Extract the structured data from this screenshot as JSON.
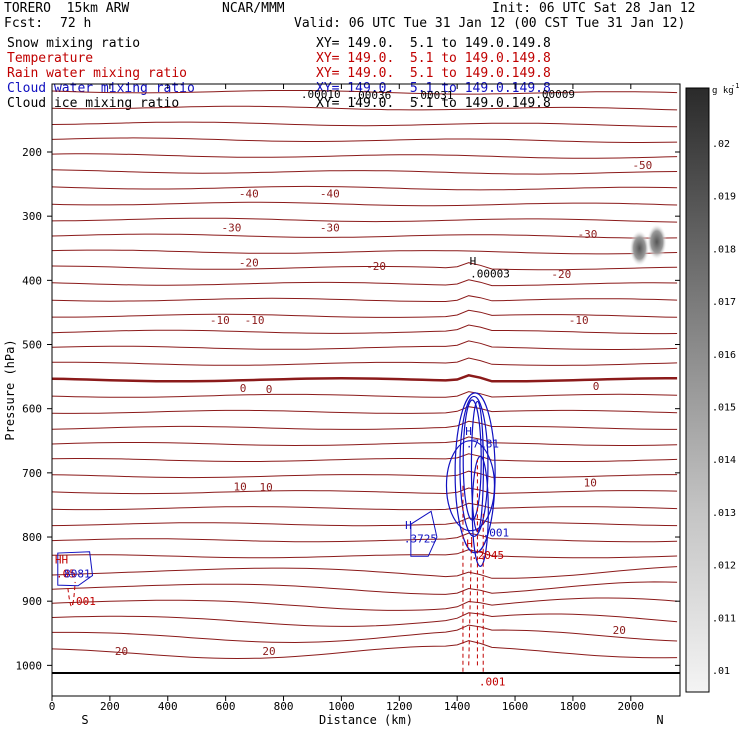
{
  "header": {
    "model": "TORERO  15km ARW",
    "org": "NCAR/MMM",
    "init": "Init: 06 UTC Sat 28 Jan 12",
    "fcst_label": "Fcst:",
    "fcst_value": "72 h",
    "valid": "Valid: 06 UTC Tue 31 Jan 12 (00 CST Tue 31 Jan 12)"
  },
  "legend": [
    {
      "name": "Snow mixing ratio",
      "xy": "XY= 149.0.  5.1 to 149.0.149.8",
      "color": "#000000"
    },
    {
      "name": "Temperature",
      "xy": "XY= 149.0.  5.1 to 149.0.149.8",
      "color": "#c00000"
    },
    {
      "name": "Rain water mixing ratio",
      "xy": "XY= 149.0.  5.1 to 149.0.149.8",
      "color": "#c00000"
    },
    {
      "name": "Cloud water mixing ratio",
      "xy": "XY= 149.0.  5.1 to 149.0.149.8",
      "color": "#1010c0"
    },
    {
      "name": "Cloud ice mixing ratio",
      "xy": "XY= 149.0.  5.1 to 149.0.149.8",
      "color": "#000000"
    }
  ],
  "chart_data": {
    "type": "contour cross-section",
    "xlabel": "Distance (km)",
    "ylabel": "Pressure (hPa)",
    "xlim": [
      0,
      2170
    ],
    "ylim": [
      1050,
      100
    ],
    "x_ticks": [
      0,
      200,
      400,
      600,
      800,
      1000,
      1200,
      1400,
      1600,
      1800,
      2000
    ],
    "y_ticks": [
      200,
      300,
      400,
      500,
      600,
      700,
      800,
      900,
      1000
    ],
    "end_labels": {
      "left": "S",
      "right": "N"
    },
    "colorbar": {
      "unit": "g kg",
      "unit_exp": "-1",
      "ticks": [
        ".02",
        ".019",
        ".018",
        ".017",
        ".016",
        ".015",
        ".014",
        ".013",
        ".012",
        ".011",
        ".01"
      ]
    },
    "temperature_contours": {
      "labeled": [
        -50,
        -40,
        -30,
        -20,
        -10,
        0,
        10,
        20
      ],
      "labels": [
        {
          "text": "-50",
          "x": 2040,
          "p": 220
        },
        {
          "text": "-40",
          "x": 680,
          "p": 265
        },
        {
          "text": "-40",
          "x": 960,
          "p": 265
        },
        {
          "text": "-30",
          "x": 620,
          "p": 318
        },
        {
          "text": "-30",
          "x": 960,
          "p": 318
        },
        {
          "text": "-30",
          "x": 1850,
          "p": 328
        },
        {
          "text": "-20",
          "x": 680,
          "p": 372
        },
        {
          "text": "-20",
          "x": 1120,
          "p": 378
        },
        {
          "text": "-20",
          "x": 1760,
          "p": 390
        },
        {
          "text": "-10",
          "x": 580,
          "p": 462
        },
        {
          "text": "-10",
          "x": 700,
          "p": 462
        },
        {
          "text": "-10",
          "x": 1820,
          "p": 462
        },
        {
          "text": "0",
          "x": 660,
          "p": 568
        },
        {
          "text": "0",
          "x": 750,
          "p": 569
        },
        {
          "text": "0",
          "x": 1880,
          "p": 565
        },
        {
          "text": "10",
          "x": 650,
          "p": 721
        },
        {
          "text": "10",
          "x": 740,
          "p": 722
        },
        {
          "text": "10",
          "x": 1860,
          "p": 715
        },
        {
          "text": "20",
          "x": 240,
          "p": 978
        },
        {
          "text": "20",
          "x": 750,
          "p": 978
        },
        {
          "text": "20",
          "x": 1960,
          "p": 945
        }
      ]
    },
    "annotations": [
      {
        "text": ".00010",
        "x": 860,
        "p": 110,
        "color": "#000000"
      },
      {
        "text": ".00036",
        "x": 1035,
        "p": 111,
        "color": "#000000"
      },
      {
        "text": ".00031",
        "x": 1250,
        "p": 111,
        "color": "#000000"
      },
      {
        "text": ".00009",
        "x": 1670,
        "p": 110,
        "color": "#000000"
      },
      {
        "text": "H",
        "x": 1443,
        "p": 370,
        "color": "#000000"
      },
      {
        "text": ".00003",
        "x": 1445,
        "p": 389,
        "color": "#000000"
      },
      {
        "text": "H",
        "x": 1428,
        "p": 635,
        "color": "#1010c0"
      },
      {
        "text": ".7181",
        "x": 1430,
        "p": 654,
        "color": "#1010c0"
      },
      {
        "text": "H",
        "x": 1220,
        "p": 781,
        "color": "#1010c0"
      },
      {
        "text": ".3725",
        "x": 1216,
        "p": 802,
        "color": "#1010c0"
      },
      {
        "text": ".001",
        "x": 1488,
        "p": 793,
        "color": "#1010c0"
      },
      {
        "text": "H",
        "x": 1432,
        "p": 810,
        "color": "#c00000"
      },
      {
        "text": ".2045",
        "x": 1448,
        "p": 828,
        "color": "#c00000"
      },
      {
        "text": "HH",
        "x": 10,
        "p": 835,
        "color": "#c00000"
      },
      {
        "text": ".05",
        "x": 14,
        "p": 857,
        "color": "#c00000"
      },
      {
        "text": "8081",
        "x": 42,
        "p": 857,
        "color": "#1010c0"
      },
      {
        "text": ".001",
        "x": 60,
        "p": 900,
        "color": "#c00000"
      },
      {
        "text": ".001",
        "x": 1475,
        "p": 1025,
        "color": "#c00000"
      }
    ]
  }
}
